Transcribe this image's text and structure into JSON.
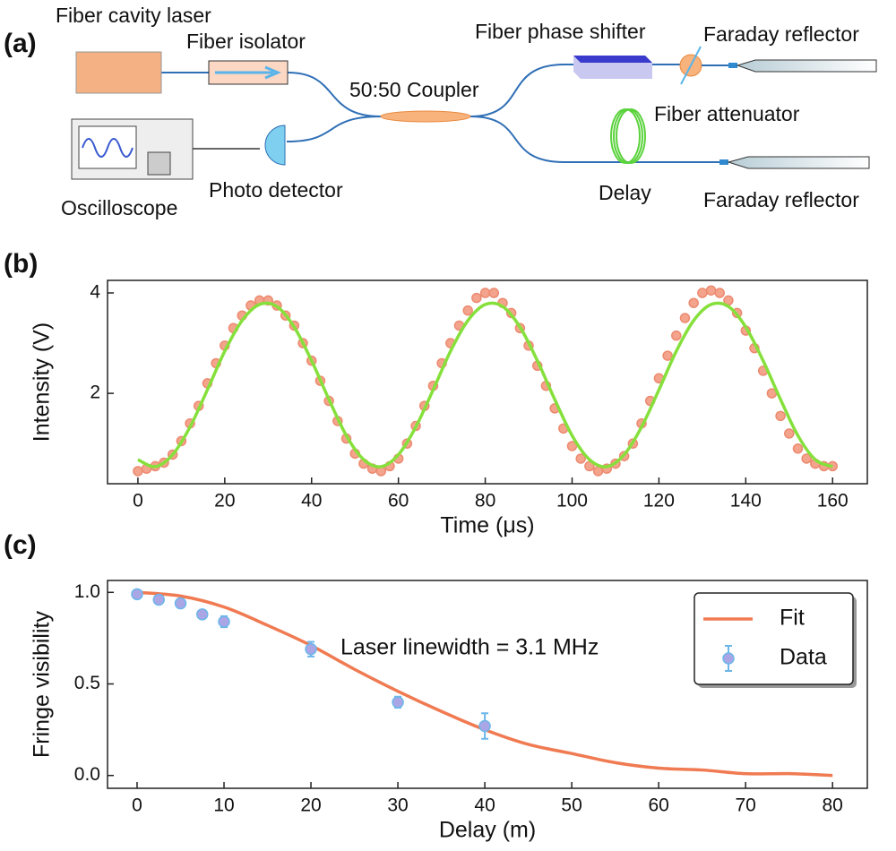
{
  "panels": [
    "(a)",
    "(b)",
    "(c)"
  ],
  "diagram": {
    "labels": [
      "Fiber cavity laser",
      "Fiber isolator",
      "50:50 Coupler",
      "Fiber phase shifter",
      "Faraday reflector",
      "Fiber attenuator",
      "Oscilloscope",
      "Photo detector",
      "Delay",
      "Faraday reflector"
    ]
  },
  "chart_data": [
    {
      "type": "line",
      "xlabel": "Time (μs)",
      "ylabel": "Intensity (V)",
      "xlim": [
        -7,
        168
      ],
      "ylim": [
        0.2,
        4.25
      ],
      "xticks": [
        0,
        20,
        40,
        60,
        80,
        100,
        120,
        140,
        160
      ],
      "yticks": [
        2,
        4
      ],
      "series": [
        {
          "type": "scatter",
          "color": "#f4a48c",
          "x": [
            0,
            2,
            4,
            6,
            8,
            10,
            12,
            14,
            16,
            18,
            20,
            22,
            24,
            26,
            28,
            30,
            32,
            34,
            36,
            38,
            40,
            42,
            44,
            46,
            48,
            50,
            52,
            54,
            56,
            58,
            60,
            62,
            64,
            66,
            68,
            70,
            72,
            74,
            76,
            78,
            80,
            82,
            84,
            86,
            88,
            90,
            92,
            94,
            96,
            98,
            100,
            102,
            104,
            106,
            108,
            110,
            112,
            114,
            116,
            118,
            120,
            122,
            124,
            126,
            128,
            130,
            132,
            134,
            136,
            138,
            140,
            142,
            144,
            146,
            148,
            150,
            152,
            154,
            156,
            158,
            160
          ],
          "values": [
            0.45,
            0.5,
            0.55,
            0.62,
            0.78,
            1.05,
            1.4,
            1.75,
            2.2,
            2.6,
            2.95,
            3.3,
            3.55,
            3.75,
            3.85,
            3.85,
            3.75,
            3.55,
            3.35,
            3.0,
            2.65,
            2.25,
            1.85,
            1.45,
            1.1,
            0.8,
            0.6,
            0.5,
            0.45,
            0.55,
            0.7,
            1.0,
            1.35,
            1.75,
            2.15,
            2.6,
            3.0,
            3.35,
            3.65,
            3.9,
            4.0,
            4.0,
            3.8,
            3.6,
            3.3,
            2.95,
            2.55,
            2.15,
            1.7,
            1.3,
            0.95,
            0.7,
            0.55,
            0.45,
            0.5,
            0.6,
            0.75,
            1.0,
            1.4,
            1.85,
            2.3,
            2.75,
            3.15,
            3.5,
            3.8,
            4.0,
            4.05,
            4.0,
            3.85,
            3.6,
            3.25,
            2.9,
            2.45,
            2.0,
            1.55,
            1.2,
            0.9,
            0.7,
            0.6,
            0.55,
            0.55
          ]
        },
        {
          "type": "line",
          "color": "#86e03c",
          "x": [
            0,
            4,
            8,
            12,
            16,
            20,
            24,
            28,
            32,
            36,
            40,
            44,
            48,
            52,
            56,
            60,
            64,
            68,
            72,
            76,
            80,
            84,
            88,
            92,
            96,
            100,
            104,
            108,
            112,
            116,
            120,
            124,
            128,
            132,
            136,
            140,
            144,
            148,
            152,
            156,
            160
          ],
          "values": [
            0.68,
            0.54,
            0.78,
            1.33,
            2.07,
            2.84,
            3.45,
            3.77,
            3.73,
            3.32,
            2.65,
            1.88,
            1.16,
            0.68,
            0.54,
            0.78,
            1.33,
            2.07,
            2.84,
            3.45,
            3.77,
            3.73,
            3.32,
            2.65,
            1.88,
            1.16,
            0.68,
            0.54,
            0.78,
            1.33,
            2.07,
            2.84,
            3.45,
            3.77,
            3.73,
            3.32,
            2.65,
            1.88,
            1.16,
            0.68,
            0.54
          ]
        }
      ]
    },
    {
      "type": "line",
      "xlabel": "Delay (m)",
      "ylabel": "Fringe visibility",
      "annotation": "Laser linewidth = 3.1 MHz",
      "legend": "upper right",
      "xlim": [
        -3.4,
        84
      ],
      "ylim": [
        -0.07,
        1.065
      ],
      "xticks": [
        0,
        10,
        20,
        30,
        40,
        50,
        60,
        70,
        80
      ],
      "yticks": [
        {
          "value": 0,
          "label": "0.0"
        },
        0.5,
        {
          "value": 1,
          "label": "1.0"
        }
      ],
      "series": [
        {
          "name": "Fit",
          "type": "line",
          "color": "#f07a52",
          "x": [
            0,
            5,
            10,
            15,
            20,
            25,
            30,
            35,
            40,
            45,
            50,
            55,
            60,
            65,
            70,
            75,
            80
          ],
          "values": [
            1,
            0.98,
            0.92,
            0.82,
            0.71,
            0.58,
            0.46,
            0.35,
            0.25,
            0.17,
            0.12,
            0.07,
            0.04,
            0.03,
            0.01,
            0.01,
            0
          ]
        },
        {
          "name": "Data",
          "type": "scatter",
          "color": "#aaa6e6",
          "edgecolor": "#6cb6ea",
          "x": [
            0,
            2.5,
            5,
            7.5,
            10,
            20,
            30,
            40
          ],
          "values": [
            0.99,
            0.96,
            0.94,
            0.88,
            0.84,
            0.69,
            0.4,
            0.27
          ],
          "errors": [
            0.01,
            0.01,
            0.01,
            0.01,
            0.03,
            0.04,
            0.03,
            0.07
          ]
        }
      ]
    }
  ]
}
